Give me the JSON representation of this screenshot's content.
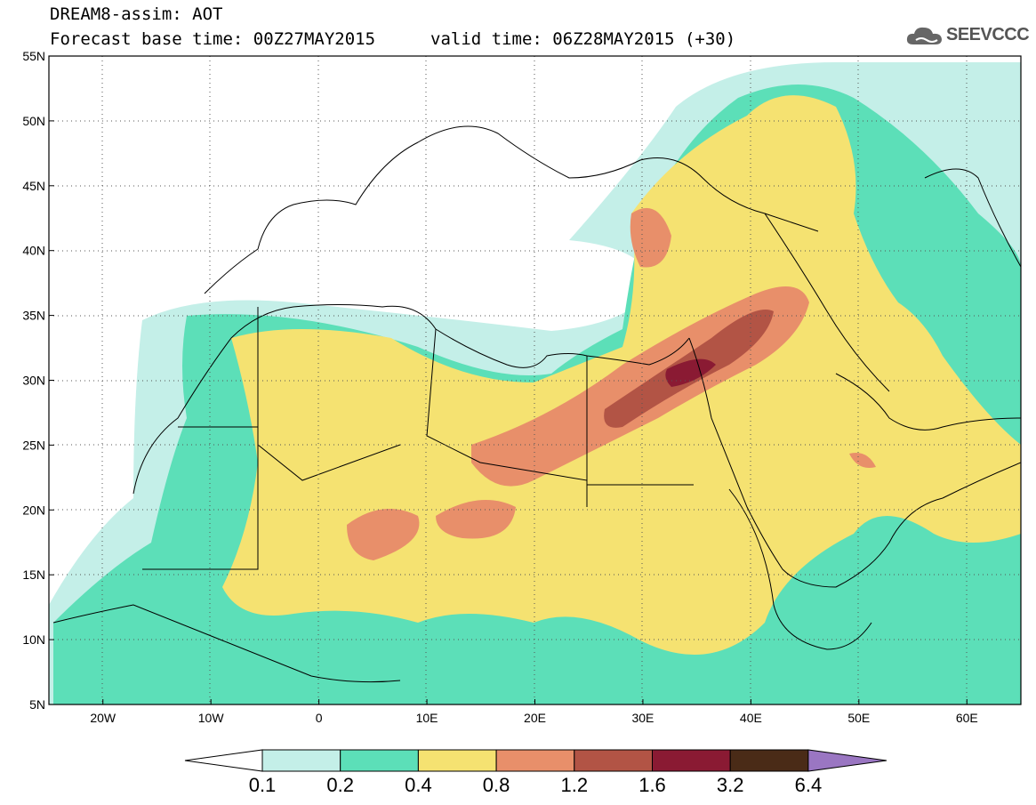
{
  "title": {
    "line1": "DREAM8-assim: AOT",
    "line2": "Forecast base time: 00Z27MAY2015",
    "line3": "valid time: 06Z28MAY2015 (+30)"
  },
  "logo": {
    "text": "SEEVCCC",
    "icon": "cloud-icon"
  },
  "map": {
    "lon_range": [
      -25,
      65
    ],
    "lat_range": [
      5,
      55
    ],
    "lon_ticks": [
      "20W",
      "10W",
      "0",
      "10E",
      "20E",
      "30E",
      "40E",
      "50E",
      "60E"
    ],
    "lat_ticks": [
      "55N",
      "50N",
      "45N",
      "40N",
      "35N",
      "30N",
      "25N",
      "20N",
      "15N",
      "10N",
      "5N"
    ],
    "variable": "AOT"
  },
  "colorbar": {
    "labels": [
      "0.1",
      "0.2",
      "0.4",
      "0.8",
      "1.2",
      "1.6",
      "3.2",
      "6.4"
    ],
    "colors": [
      "#ffffff",
      "#c4efe8",
      "#5cdfb8",
      "#f5e271",
      "#e88f6a",
      "#b25445",
      "#8a1a33",
      "#4a2b17",
      "#9a76c2"
    ]
  }
}
